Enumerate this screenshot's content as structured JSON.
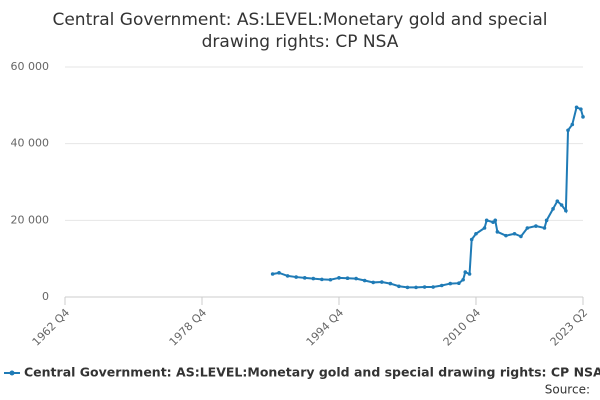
{
  "chart_data": {
    "type": "line",
    "title": "Central Government: AS:LEVEL:Monetary gold and special drawing rights: CP NSA",
    "x": [
      "1987 Q1",
      "1987 Q4",
      "1988 Q4",
      "1989 Q4",
      "1990 Q4",
      "1991 Q4",
      "1992 Q4",
      "1993 Q4",
      "1994 Q4",
      "1995 Q4",
      "1996 Q4",
      "1997 Q4",
      "1998 Q4",
      "1999 Q4",
      "2000 Q4",
      "2001 Q4",
      "2002 Q4",
      "2003 Q4",
      "2004 Q4",
      "2005 Q4",
      "2006 Q4",
      "2007 Q4",
      "2008 Q4",
      "2009 Q2",
      "2009 Q3",
      "2010 Q1",
      "2010 Q2",
      "2010 Q4",
      "2011 Q4",
      "2012 Q1",
      "2012 Q4",
      "2013 Q1",
      "2013 Q2",
      "2014 Q2",
      "2015 Q2",
      "2016 Q1",
      "2016 Q4",
      "2017 Q4",
      "2018 Q4",
      "2019 Q1",
      "2019 Q4",
      "2020 Q2",
      "2020 Q4",
      "2021 Q2",
      "2021 Q3",
      "2022 Q1",
      "2022 Q3",
      "2023 Q1",
      "2023 Q2"
    ],
    "series": [
      {
        "name": "Central Government: AS:LEVEL:Monetary gold and special drawing rights: CP NSA",
        "color": "#1f7bb6",
        "values": [
          6000,
          6300,
          5500,
          5200,
          5000,
          4800,
          4600,
          4500,
          5000,
          4900,
          4800,
          4300,
          3800,
          3900,
          3500,
          2800,
          2500,
          2500,
          2600,
          2600,
          3000,
          3500,
          3600,
          4500,
          6500,
          6000,
          15000,
          16500,
          18000,
          20000,
          19500,
          20000,
          17000,
          16000,
          16500,
          15800,
          18000,
          18500,
          18000,
          20000,
          23000,
          25000,
          24000,
          22500,
          43500,
          45000,
          49500,
          49000,
          47000
        ]
      }
    ],
    "xlim": [
      "1962 Q4",
      "2023 Q2"
    ],
    "xticks": [
      "1962 Q4",
      "1978 Q4",
      "1994 Q4",
      "2010 Q4",
      "2023 Q2"
    ],
    "ylim": [
      0,
      60000
    ],
    "yticks": [
      0,
      {
        "value": 20000,
        "label": "20 000"
      },
      {
        "value": 40000,
        "label": "40 000"
      },
      {
        "value": 60000,
        "label": "60 000"
      }
    ],
    "grid": true,
    "legend": "bottom",
    "source": "Source:"
  }
}
